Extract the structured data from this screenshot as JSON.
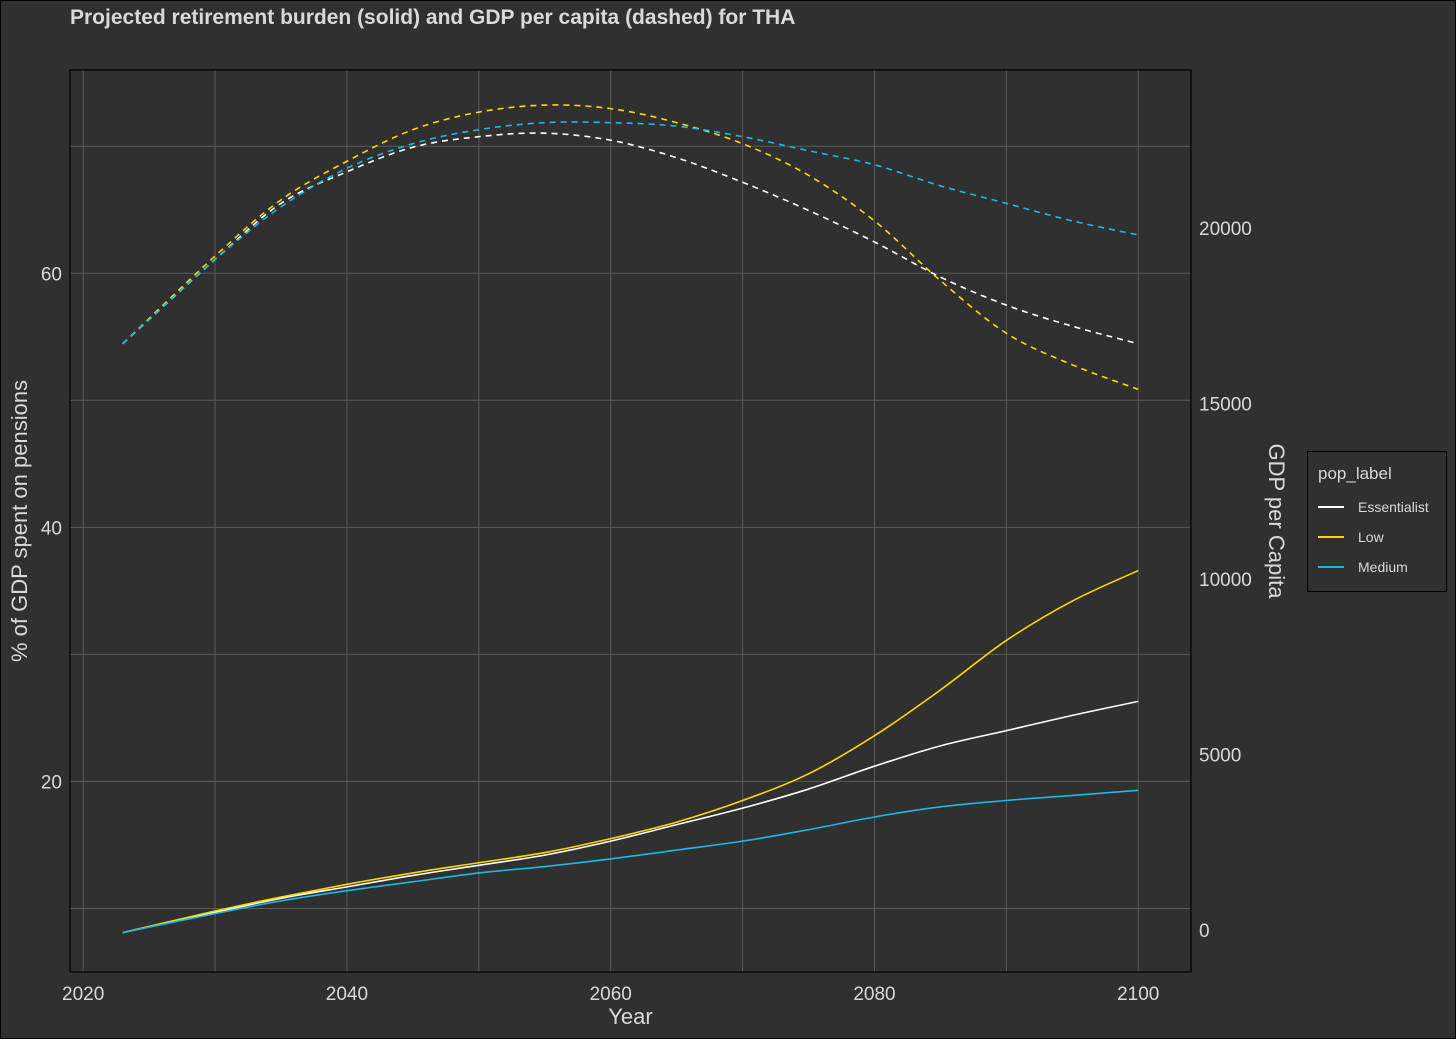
{
  "chart_data": {
    "type": "line",
    "title": "Projected retirement burden (solid) and GDP per capita (dashed) for THA",
    "xlabel": "Year",
    "ylabel": "% of GDP spent on pensions",
    "y2label": "GDP per Capita",
    "xlim": [
      2019,
      2104
    ],
    "ylim": [
      5,
      76
    ],
    "y2lim": [
      -1200,
      24500
    ],
    "xticks": [
      2020,
      2040,
      2060,
      2080,
      2100
    ],
    "yticks": [
      20,
      40,
      60
    ],
    "y2ticks": [
      0,
      5000,
      10000,
      15000,
      20000
    ],
    "grid": true,
    "legend": {
      "title": "pop_label",
      "placement": "right"
    },
    "series": [
      {
        "name": "Essentialist",
        "axis": "left",
        "style": "solid",
        "color": "#ffffff",
        "x": [
          2023,
          2030,
          2035,
          2040,
          2045,
          2050,
          2055,
          2060,
          2065,
          2070,
          2075,
          2080,
          2085,
          2090,
          2095,
          2100
        ],
        "y": [
          8.1,
          9.7,
          10.8,
          11.7,
          12.6,
          13.4,
          14.2,
          15.3,
          16.6,
          17.9,
          19.4,
          21.2,
          22.8,
          24.0,
          25.2,
          26.3
        ]
      },
      {
        "name": "Low",
        "axis": "left",
        "style": "solid",
        "color": "#ffd700",
        "x": [
          2023,
          2030,
          2035,
          2040,
          2045,
          2050,
          2055,
          2060,
          2065,
          2070,
          2075,
          2080,
          2085,
          2090,
          2095,
          2100
        ],
        "y": [
          8.1,
          9.8,
          10.9,
          11.9,
          12.8,
          13.6,
          14.4,
          15.5,
          16.8,
          18.5,
          20.6,
          23.6,
          27.2,
          31.1,
          34.2,
          36.6
        ]
      },
      {
        "name": "Medium",
        "axis": "left",
        "style": "solid",
        "color": "#1ab8e8",
        "x": [
          2023,
          2030,
          2035,
          2040,
          2045,
          2050,
          2055,
          2060,
          2065,
          2070,
          2075,
          2080,
          2085,
          2090,
          2095,
          2100
        ],
        "y": [
          8.1,
          9.6,
          10.6,
          11.4,
          12.1,
          12.8,
          13.3,
          13.9,
          14.6,
          15.3,
          16.2,
          17.2,
          18.0,
          18.5,
          18.9,
          19.3
        ]
      },
      {
        "name": "Essentialist",
        "axis": "right",
        "style": "dashed",
        "color": "#ffffff",
        "x": [
          2023,
          2030,
          2035,
          2040,
          2045,
          2050,
          2055,
          2060,
          2065,
          2070,
          2075,
          2080,
          2085,
          2090,
          2095,
          2100
        ],
        "y": [
          16700,
          19100,
          20700,
          21600,
          22300,
          22600,
          22700,
          22500,
          22000,
          21300,
          20500,
          19600,
          18600,
          17800,
          17200,
          16700
        ]
      },
      {
        "name": "Low",
        "axis": "right",
        "style": "dashed",
        "color": "#ffd700",
        "x": [
          2023,
          2030,
          2035,
          2040,
          2045,
          2050,
          2055,
          2060,
          2065,
          2070,
          2075,
          2080,
          2085,
          2090,
          2095,
          2100
        ],
        "y": [
          16700,
          19200,
          20800,
          21900,
          22800,
          23300,
          23500,
          23400,
          23000,
          22400,
          21500,
          20200,
          18500,
          17000,
          16100,
          15400
        ]
      },
      {
        "name": "Medium",
        "axis": "right",
        "style": "dashed",
        "color": "#1ab8e8",
        "x": [
          2023,
          2030,
          2035,
          2040,
          2045,
          2050,
          2055,
          2060,
          2065,
          2070,
          2075,
          2080,
          2085,
          2090,
          2095,
          2100
        ],
        "y": [
          16700,
          19100,
          20600,
          21700,
          22400,
          22800,
          23000,
          23000,
          22900,
          22600,
          22200,
          21800,
          21200,
          20700,
          20200,
          19800
        ]
      }
    ]
  },
  "legend_entries": [
    {
      "label": "Essentialist",
      "color": "#ffffff"
    },
    {
      "label": "Low",
      "color": "#ffd700"
    },
    {
      "label": "Medium",
      "color": "#1ab8e8"
    }
  ]
}
